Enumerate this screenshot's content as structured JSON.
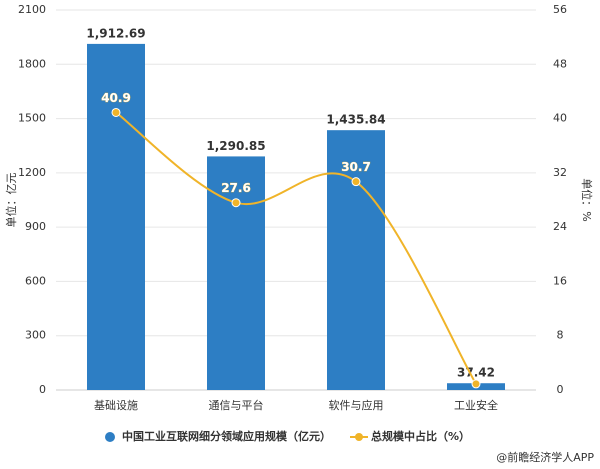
{
  "chart_data": {
    "type": "combo",
    "categories": [
      "基础设施",
      "通信与平台",
      "软件与应用",
      "工业安全"
    ],
    "series": [
      {
        "name": "中国工业互联网细分领域应用规模（亿元）",
        "type": "bar",
        "color": "#2d7ec4",
        "values": [
          1912.69,
          1290.85,
          1435.84,
          37.42
        ],
        "value_labels": [
          "1,912.69",
          "1,290.85",
          "1,435.84",
          "37.42"
        ]
      },
      {
        "name": "总规模中占比（%）",
        "type": "line",
        "axis": "y2",
        "color": "#f0b429",
        "values": [
          40.9,
          27.6,
          30.7,
          0.9
        ],
        "value_labels": [
          "40.9",
          "27.6",
          "30.7",
          null
        ]
      }
    ],
    "ylim": [
      0,
      2100
    ],
    "yticks": [
      0,
      300,
      600,
      900,
      1200,
      1500,
      1800,
      2100
    ],
    "y2lim": [
      0,
      56
    ],
    "y2ticks": [
      0,
      8,
      16,
      24,
      32,
      40,
      48,
      56
    ],
    "ylabel": "单位：亿元",
    "y2label": "单位：%",
    "grid": true,
    "legend": "bottom",
    "source": "@前瞻经济学人APP"
  }
}
